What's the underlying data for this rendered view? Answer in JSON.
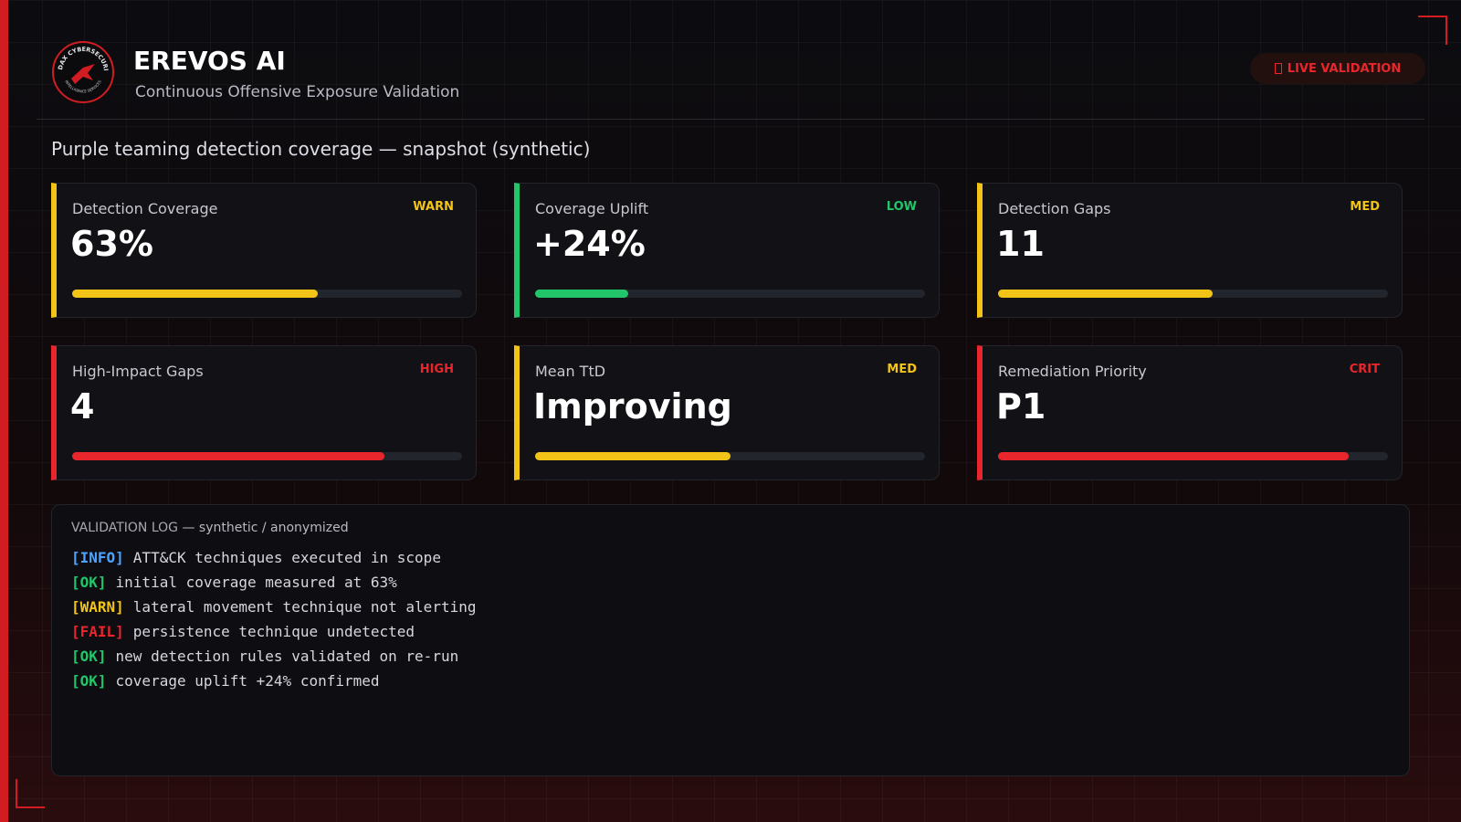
{
  "header": {
    "brand": "EREVOS AI",
    "tagline": "Continuous Offensive Exposure Validation",
    "badge": "LIVE VALIDATION",
    "logo_top": "AUDAX CYBERSECURITY",
    "logo_bottom": "INTELLIGENCE SERVICES"
  },
  "subtitle": "Purple teaming detection coverage — snapshot (synthetic)",
  "cards": [
    {
      "label": "Detection Coverage",
      "value": "63%",
      "level": "WARN",
      "progress": 63,
      "color": "#f2c418"
    },
    {
      "label": "Coverage Uplift",
      "value": "+24%",
      "level": "LOW",
      "progress": 24,
      "color": "#22c56a"
    },
    {
      "label": "Detection Gaps",
      "value": "11",
      "level": "MED",
      "progress": 55,
      "color": "#f2c418"
    },
    {
      "label": "High-Impact Gaps",
      "value": "4",
      "level": "HIGH",
      "progress": 80,
      "color": "#e8262b"
    },
    {
      "label": "Mean TtD",
      "value": "Improving",
      "level": "MED",
      "progress": 50,
      "color": "#f2c418"
    },
    {
      "label": "Remediation Priority",
      "value": "P1",
      "level": "CRIT",
      "progress": 90,
      "color": "#e8262b"
    }
  ],
  "log": {
    "title": "VALIDATION LOG",
    "note": "— synthetic / anonymized",
    "entries": [
      {
        "tag": "[INFO]",
        "text": "ATT&CK techniques executed in scope",
        "color": "#4da3ff"
      },
      {
        "tag": "[OK]",
        "text": "initial coverage measured at 63%",
        "color": "#22c56a"
      },
      {
        "tag": "[WARN]",
        "text": "lateral movement technique not alerting",
        "color": "#f2c418"
      },
      {
        "tag": "[FAIL]",
        "text": "persistence technique undetected",
        "color": "#e8262b"
      },
      {
        "tag": "[OK]",
        "text": "new detection rules validated on re-run",
        "color": "#22c56a"
      },
      {
        "tag": "[OK]",
        "text": "coverage uplift +24% confirmed",
        "color": "#22c56a"
      }
    ]
  }
}
